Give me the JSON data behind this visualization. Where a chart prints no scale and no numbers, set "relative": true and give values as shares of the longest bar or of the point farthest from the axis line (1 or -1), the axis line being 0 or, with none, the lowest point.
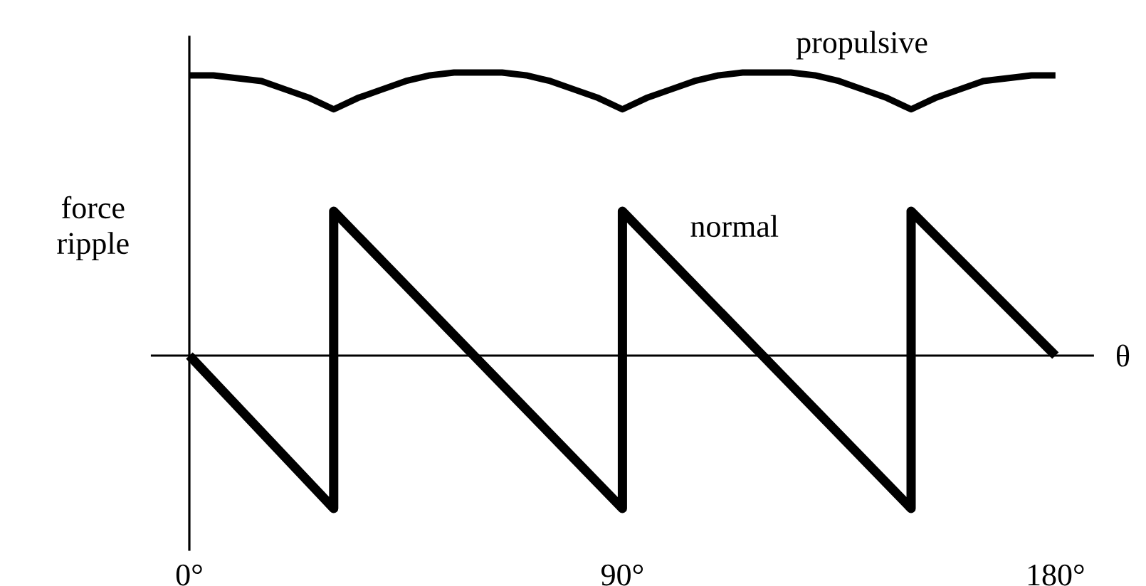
{
  "chart_data": {
    "type": "line",
    "relative": true,
    "ylabel": "force ripple",
    "xlabel": "θ",
    "xlim": [
      -8,
      188
    ],
    "xticks": [
      {
        "value": 0,
        "label": "0°"
      },
      {
        "value": 90,
        "label": "90°"
      },
      {
        "value": 180,
        "label": "180°"
      }
    ],
    "series": [
      {
        "name": "propulsive",
        "color": "#000000",
        "x": [
          0,
          5,
          10,
          15,
          20,
          25,
          30,
          35,
          40,
          45,
          50,
          55,
          60,
          65,
          70,
          75,
          80,
          85,
          90,
          95,
          100,
          105,
          110,
          115,
          120,
          125,
          130,
          135,
          140,
          145,
          150,
          155,
          160,
          165,
          170,
          175,
          180
        ],
        "values": [
          0.99,
          0.99,
          0.98,
          0.97,
          0.94,
          0.91,
          0.87,
          0.91,
          0.94,
          0.97,
          0.99,
          1.0,
          1.0,
          1.0,
          0.99,
          0.97,
          0.94,
          0.91,
          0.87,
          0.91,
          0.94,
          0.97,
          0.99,
          1.0,
          1.0,
          1.0,
          0.99,
          0.97,
          0.94,
          0.91,
          0.87,
          0.91,
          0.94,
          0.97,
          0.98,
          0.99,
          0.99
        ]
      },
      {
        "name": "normal",
        "color": "#000000",
        "x": [
          0,
          30,
          30,
          90,
          90,
          150,
          150,
          180
        ],
        "values": [
          0,
          -0.54,
          0.51,
          -0.54,
          0.51,
          -0.54,
          0.51,
          0
        ]
      }
    ]
  }
}
